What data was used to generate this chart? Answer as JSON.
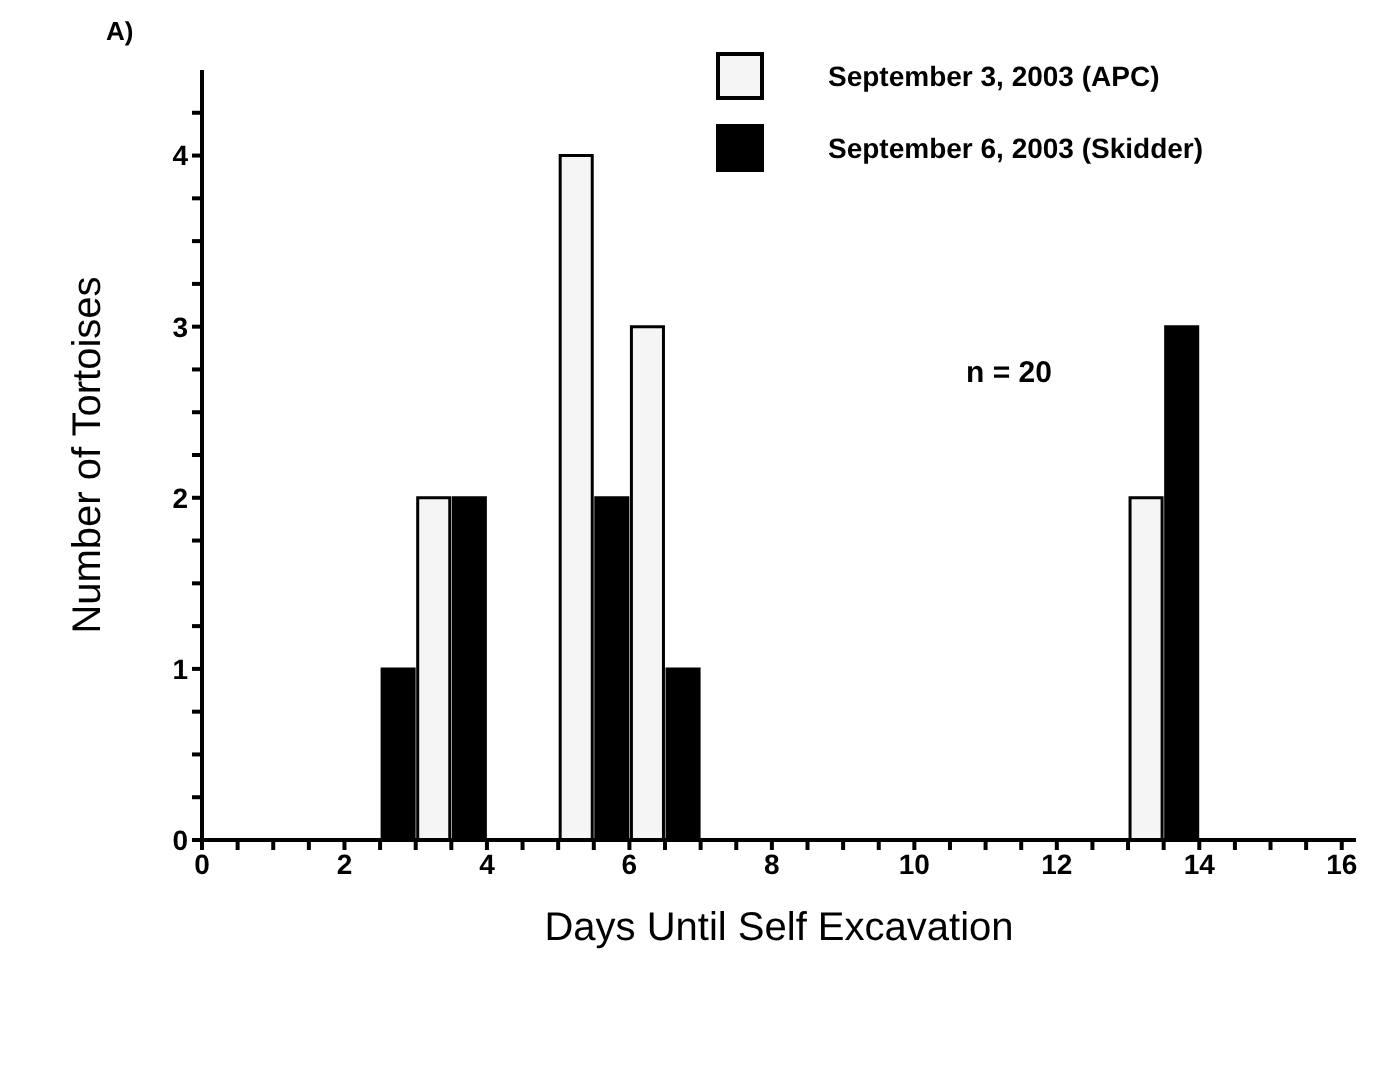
{
  "chart_data": {
    "type": "bar",
    "xlabel": "Days Until Self Excavation",
    "ylabel": "Number of Tortoises",
    "series": [
      {
        "name": "September 3, 2003 (APC)",
        "color": "#f5f5f5",
        "x": [
          3.25,
          5.25,
          6.25,
          13.25
        ],
        "values": [
          2,
          4,
          3,
          2
        ]
      },
      {
        "name": "September 6, 2003 (Skidder)",
        "color": "#000000",
        "x": [
          2.75,
          3.75,
          5.75,
          6.75,
          13.75
        ],
        "values": [
          1,
          2,
          2,
          1,
          3
        ]
      }
    ],
    "xlim": [
      0,
      16.2
    ],
    "xticks": [
      0,
      {
        "value": 0.5,
        "label": null
      },
      {
        "value": 1,
        "label": null
      },
      {
        "value": 1.5,
        "label": null
      },
      2,
      {
        "value": 2.5,
        "label": null
      },
      {
        "value": 3,
        "label": null
      },
      {
        "value": 3.5,
        "label": null
      },
      4,
      {
        "value": 4.5,
        "label": null
      },
      {
        "value": 5,
        "label": null
      },
      {
        "value": 5.5,
        "label": null
      },
      6,
      {
        "value": 6.5,
        "label": null
      },
      {
        "value": 7,
        "label": null
      },
      {
        "value": 7.5,
        "label": null
      },
      8,
      {
        "value": 8.5,
        "label": null
      },
      {
        "value": 9,
        "label": null
      },
      {
        "value": 9.5,
        "label": null
      },
      10,
      {
        "value": 10.5,
        "label": null
      },
      {
        "value": 11,
        "label": null
      },
      {
        "value": 11.5,
        "label": null
      },
      12,
      {
        "value": 12.5,
        "label": null
      },
      {
        "value": 13,
        "label": null
      },
      {
        "value": 13.5,
        "label": null
      },
      14,
      {
        "value": 14.5,
        "label": null
      },
      {
        "value": 15,
        "label": null
      },
      {
        "value": 15.5,
        "label": null
      },
      16
    ],
    "ylim": [
      0,
      4.5
    ],
    "yticks": [
      0,
      {
        "value": 0.25,
        "label": null
      },
      {
        "value": 0.5,
        "label": null
      },
      {
        "value": 0.75,
        "label": null
      },
      1,
      {
        "value": 1.25,
        "label": null
      },
      {
        "value": 1.5,
        "label": null
      },
      {
        "value": 1.75,
        "label": null
      },
      2,
      {
        "value": 2.25,
        "label": null
      },
      {
        "value": 2.5,
        "label": null
      },
      {
        "value": 2.75,
        "label": null
      },
      3,
      {
        "value": 3.25,
        "label": null
      },
      {
        "value": 3.5,
        "label": null
      },
      {
        "value": 3.75,
        "label": null
      },
      4,
      {
        "value": 4.25,
        "label": null
      }
    ],
    "legend": "top right",
    "annotations": [
      "A)",
      "n = 20"
    ]
  }
}
